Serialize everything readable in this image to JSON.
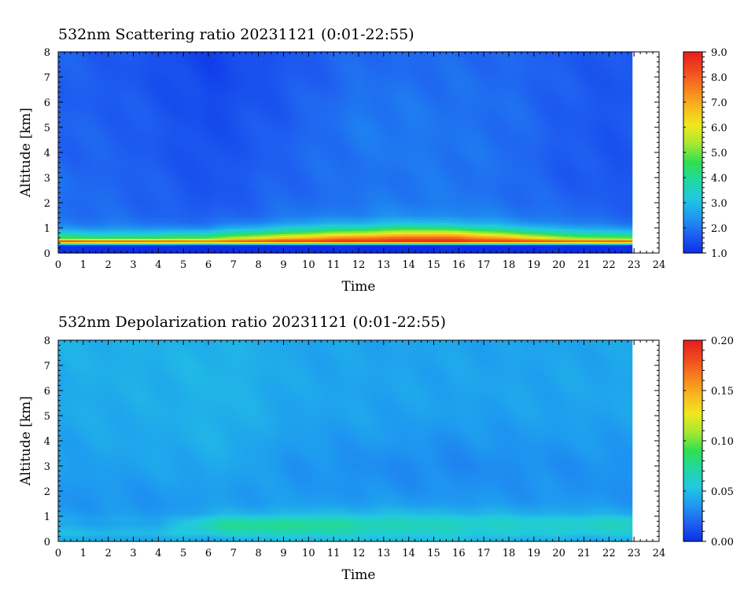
{
  "chart_data": [
    {
      "type": "heatmap",
      "title": "532nm Scattering ratio  20231121 (0:01-22:55)",
      "xlabel": "Time",
      "ylabel": "Altitude [km]",
      "xlim": [
        0,
        24
      ],
      "ylim": [
        0,
        8
      ],
      "xticks": [
        "0",
        "1",
        "2",
        "3",
        "4",
        "5",
        "6",
        "7",
        "8",
        "9",
        "10",
        "11",
        "12",
        "13",
        "14",
        "15",
        "16",
        "17",
        "18",
        "19",
        "20",
        "21",
        "22",
        "23",
        "24"
      ],
      "yticks": [
        "0",
        "1",
        "2",
        "3",
        "4",
        "5",
        "6",
        "7",
        "8"
      ],
      "data_time_range": [
        0.02,
        22.92
      ],
      "colorbar": {
        "range": [
          1.0,
          9.0
        ],
        "tick_labels": [
          "1.0",
          "2.0",
          "3.0",
          "4.0",
          "5.0",
          "6.0",
          "7.0",
          "8.0",
          "9.0"
        ],
        "colormap": [
          "#0a2ee8",
          "#1f5ff0",
          "#1e9af0",
          "#22c8e0",
          "#20d8a0",
          "#30e050",
          "#a8e830",
          "#f0e81e",
          "#f8b81e",
          "#f88020",
          "#f04a1e",
          "#e81e1e"
        ]
      },
      "altitude_profile_km": [
        0,
        0.3,
        0.45,
        0.6,
        0.8,
        1.0,
        1.2,
        1.5,
        2,
        2.5,
        3,
        4,
        5,
        6,
        7,
        8
      ],
      "profiles": [
        {
          "time": 0,
          "values": [
            1.0,
            1.0,
            8.5,
            4.5,
            3.2,
            2.4,
            2.1,
            1.95,
            1.9,
            1.9,
            1.9,
            1.8,
            1.8,
            1.75,
            1.75,
            1.75
          ]
        },
        {
          "time": 3,
          "values": [
            1.0,
            1.0,
            8.3,
            4.3,
            3.0,
            2.3,
            2.0,
            1.85,
            1.8,
            1.8,
            1.75,
            1.7,
            1.7,
            1.65,
            1.6,
            1.6
          ]
        },
        {
          "time": 6,
          "values": [
            1.0,
            1.0,
            8.0,
            4.8,
            3.3,
            2.3,
            1.9,
            1.7,
            1.6,
            1.55,
            1.55,
            1.5,
            1.45,
            1.4,
            1.35,
            1.3
          ]
        },
        {
          "time": 9,
          "values": [
            1.0,
            1.0,
            8.6,
            6.5,
            4.5,
            3.2,
            2.4,
            2.0,
            1.85,
            1.8,
            1.8,
            1.75,
            1.7,
            1.65,
            1.6,
            1.6
          ]
        },
        {
          "time": 12,
          "values": [
            1.0,
            1.0,
            8.8,
            7.5,
            5.5,
            3.8,
            2.8,
            2.2,
            2.0,
            1.95,
            1.95,
            2.0,
            2.05,
            2.0,
            1.9,
            1.85
          ]
        },
        {
          "time": 14,
          "values": [
            1.0,
            1.0,
            8.9,
            7.9,
            6.0,
            4.3,
            3.0,
            2.3,
            2.1,
            2.05,
            2.0,
            2.05,
            2.05,
            2.0,
            1.9,
            1.85
          ]
        },
        {
          "time": 16,
          "values": [
            1.0,
            1.0,
            8.9,
            7.8,
            6.0,
            4.0,
            2.9,
            2.25,
            2.05,
            2.0,
            2.0,
            2.0,
            1.95,
            1.95,
            1.9,
            1.85
          ]
        },
        {
          "time": 18,
          "values": [
            1.0,
            1.0,
            8.6,
            6.8,
            4.8,
            3.3,
            2.5,
            2.1,
            1.95,
            1.9,
            1.9,
            1.9,
            1.9,
            1.9,
            1.85,
            1.8
          ]
        },
        {
          "time": 20,
          "values": [
            1.0,
            1.0,
            8.4,
            5.5,
            3.8,
            2.8,
            2.2,
            1.95,
            1.8,
            1.75,
            1.7,
            1.7,
            1.7,
            1.7,
            1.7,
            1.7
          ]
        },
        {
          "time": 22,
          "values": [
            1.0,
            1.0,
            8.3,
            4.8,
            3.3,
            2.4,
            2.0,
            1.8,
            1.7,
            1.65,
            1.6,
            1.6,
            1.6,
            1.6,
            1.6,
            1.6
          ]
        },
        {
          "time": 22.92,
          "values": [
            1.0,
            1.0,
            8.3,
            4.8,
            3.3,
            2.4,
            2.0,
            1.8,
            1.7,
            1.65,
            1.6,
            1.6,
            1.6,
            1.6,
            1.6,
            1.6
          ]
        }
      ]
    },
    {
      "type": "heatmap",
      "title": "532nm Depolarization ratio  20231121 (0:01-22:55)",
      "xlabel": "Time",
      "ylabel": "Altitude [km]",
      "xlim": [
        0,
        24
      ],
      "ylim": [
        0,
        8
      ],
      "xticks": [
        "0",
        "1",
        "2",
        "3",
        "4",
        "5",
        "6",
        "7",
        "8",
        "9",
        "10",
        "11",
        "12",
        "13",
        "14",
        "15",
        "16",
        "17",
        "18",
        "19",
        "20",
        "21",
        "22",
        "23",
        "24"
      ],
      "yticks": [
        "0",
        "1",
        "2",
        "3",
        "4",
        "5",
        "6",
        "7",
        "8"
      ],
      "data_time_range": [
        0.02,
        22.92
      ],
      "colorbar": {
        "range": [
          0.0,
          0.2
        ],
        "tick_labels": [
          "0.00",
          "0.05",
          "0.10",
          "0.15",
          "0.20"
        ],
        "colormap": [
          "#0a2ee8",
          "#1f5ff0",
          "#1e9af0",
          "#22c8e0",
          "#20d8a0",
          "#30e050",
          "#a8e830",
          "#f0e81e",
          "#f8b81e",
          "#f88020",
          "#f04a1e",
          "#e81e1e"
        ]
      },
      "altitude_profile_km": [
        0,
        0.1,
        0.3,
        0.5,
        0.7,
        0.9,
        1.1,
        1.5,
        2,
        3,
        4,
        5,
        6,
        7,
        8
      ],
      "profiles": [
        {
          "time": 0,
          "values": [
            0.05,
            0.04,
            0.05,
            0.045,
            0.04,
            0.042,
            0.038,
            0.035,
            0.035,
            0.038,
            0.04,
            0.042,
            0.043,
            0.044,
            0.045
          ]
        },
        {
          "time": 4,
          "values": [
            0.05,
            0.04,
            0.05,
            0.045,
            0.04,
            0.04,
            0.036,
            0.035,
            0.036,
            0.04,
            0.042,
            0.043,
            0.044,
            0.045,
            0.045
          ]
        },
        {
          "time": 6.5,
          "values": [
            0.05,
            0.045,
            0.06,
            0.07,
            0.075,
            0.06,
            0.045,
            0.038,
            0.038,
            0.042,
            0.045,
            0.046,
            0.047,
            0.047,
            0.046
          ]
        },
        {
          "time": 9.5,
          "values": [
            0.06,
            0.05,
            0.065,
            0.075,
            0.078,
            0.065,
            0.048,
            0.038,
            0.036,
            0.035,
            0.037,
            0.04,
            0.041,
            0.041,
            0.041
          ]
        },
        {
          "time": 13,
          "values": [
            0.06,
            0.05,
            0.06,
            0.065,
            0.068,
            0.06,
            0.05,
            0.038,
            0.034,
            0.032,
            0.036,
            0.039,
            0.04,
            0.04,
            0.04
          ]
        },
        {
          "time": 16,
          "values": [
            0.06,
            0.05,
            0.058,
            0.062,
            0.064,
            0.058,
            0.048,
            0.037,
            0.034,
            0.031,
            0.034,
            0.038,
            0.04,
            0.04,
            0.04
          ]
        },
        {
          "time": 19,
          "values": [
            0.05,
            0.045,
            0.055,
            0.058,
            0.06,
            0.055,
            0.045,
            0.036,
            0.034,
            0.033,
            0.036,
            0.039,
            0.04,
            0.04,
            0.04
          ]
        },
        {
          "time": 22.92,
          "values": [
            0.05,
            0.045,
            0.055,
            0.062,
            0.064,
            0.058,
            0.044,
            0.036,
            0.034,
            0.034,
            0.037,
            0.04,
            0.041,
            0.041,
            0.041
          ]
        }
      ]
    }
  ]
}
